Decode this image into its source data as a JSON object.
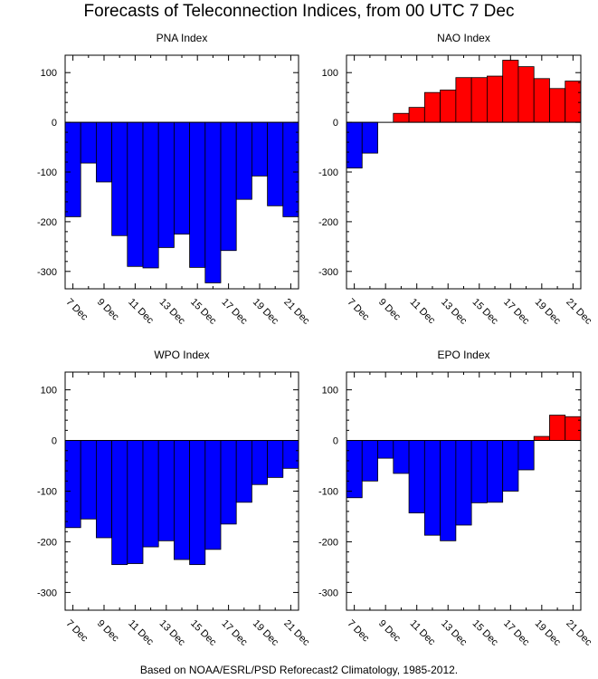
{
  "title": "Forecasts of Teleconnection Indices, from 00 UTC 7 Dec",
  "footer": "Based on NOAA/ESRL/PSD Reforecast2 Climatology, 1985-2012.",
  "colors": {
    "positive": "#ff0000",
    "negative": "#0000ff",
    "outline": "#000000"
  },
  "chart_data": [
    {
      "type": "bar",
      "title": "PNA Index",
      "categories": [
        "7 Dec",
        "8 Dec",
        "9 Dec",
        "10 Dec",
        "11 Dec",
        "12 Dec",
        "13 Dec",
        "14 Dec",
        "15 Dec",
        "16 Dec",
        "17 Dec",
        "18 Dec",
        "19 Dec",
        "20 Dec",
        "21 Dec"
      ],
      "x_tick_labels": [
        "7 Dec",
        "9 Dec",
        "11 Dec",
        "13 Dec",
        "15 Dec",
        "17 Dec",
        "19 Dec",
        "21 Dec"
      ],
      "values": [
        -190,
        -82,
        -120,
        -228,
        -290,
        -293,
        -252,
        -225,
        -292,
        -323,
        -258,
        -155,
        -108,
        -168,
        -190
      ],
      "ylim": [
        -335,
        135
      ],
      "y_ticks": [
        100,
        0,
        -100,
        -200,
        -300
      ]
    },
    {
      "type": "bar",
      "title": "NAO Index",
      "categories": [
        "7 Dec",
        "8 Dec",
        "9 Dec",
        "10 Dec",
        "11 Dec",
        "12 Dec",
        "13 Dec",
        "14 Dec",
        "15 Dec",
        "16 Dec",
        "17 Dec",
        "18 Dec",
        "19 Dec",
        "20 Dec",
        "21 Dec"
      ],
      "x_tick_labels": [
        "7 Dec",
        "9 Dec",
        "11 Dec",
        "13 Dec",
        "15 Dec",
        "17 Dec",
        "19 Dec",
        "21 Dec"
      ],
      "values": [
        -92,
        -62,
        0,
        18,
        30,
        60,
        65,
        90,
        90,
        93,
        125,
        112,
        88,
        68,
        83
      ],
      "ylim": [
        -335,
        135
      ],
      "y_ticks": [
        100,
        0,
        -100,
        -200,
        -300
      ]
    },
    {
      "type": "bar",
      "title": "WPO Index",
      "categories": [
        "7 Dec",
        "8 Dec",
        "9 Dec",
        "10 Dec",
        "11 Dec",
        "12 Dec",
        "13 Dec",
        "14 Dec",
        "15 Dec",
        "16 Dec",
        "17 Dec",
        "18 Dec",
        "19 Dec",
        "20 Dec",
        "21 Dec"
      ],
      "x_tick_labels": [
        "7 Dec",
        "9 Dec",
        "11 Dec",
        "13 Dec",
        "15 Dec",
        "17 Dec",
        "19 Dec",
        "21 Dec"
      ],
      "values": [
        -172,
        -155,
        -192,
        -245,
        -243,
        -210,
        -198,
        -235,
        -245,
        -215,
        -165,
        -122,
        -87,
        -73,
        -55
      ],
      "ylim": [
        -335,
        135
      ],
      "y_ticks": [
        100,
        0,
        -100,
        -200,
        -300
      ]
    },
    {
      "type": "bar",
      "title": "EPO Index",
      "categories": [
        "7 Dec",
        "8 Dec",
        "9 Dec",
        "10 Dec",
        "11 Dec",
        "12 Dec",
        "13 Dec",
        "14 Dec",
        "15 Dec",
        "16 Dec",
        "17 Dec",
        "18 Dec",
        "19 Dec",
        "20 Dec",
        "21 Dec"
      ],
      "x_tick_labels": [
        "7 Dec",
        "9 Dec",
        "11 Dec",
        "13 Dec",
        "15 Dec",
        "17 Dec",
        "19 Dec",
        "21 Dec"
      ],
      "values": [
        -113,
        -80,
        -35,
        -65,
        -143,
        -187,
        -198,
        -167,
        -123,
        -122,
        -100,
        -58,
        8,
        50,
        47
      ],
      "ylim": [
        -335,
        135
      ],
      "y_ticks": [
        100,
        0,
        -100,
        -200,
        -300
      ]
    }
  ]
}
